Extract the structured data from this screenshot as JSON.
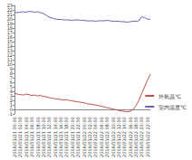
{
  "chart_data": {
    "type": "line",
    "categories": [
      "2016/01/21 00:00",
      null,
      "2016/01/21 02:00",
      null,
      "2016/01/21 04:00",
      null,
      "2016/01/21 06:00",
      null,
      "2016/01/21 08:00",
      null,
      "2016/01/21 10:00",
      null,
      "2016/01/21 12:00",
      null,
      "2016/01/21 14:00",
      null,
      "2016/01/21 16:00",
      null,
      "2016/01/21 18:00",
      null,
      "2016/01/21 20:00",
      null,
      "2016/01/21 22:00",
      null,
      "2016/01/22 00:00",
      null,
      "2016/01/22 02:00",
      null,
      "2016/01/22 04:00",
      null,
      "2016/01/22 06:00",
      null,
      "2016/01/22 08:00",
      null,
      "2016/01/22 10:00",
      null,
      "2016/01/22 12:00",
      null,
      "2016/01/22 14:00",
      null,
      "2016/01/22 16:00",
      null,
      "2016/01/22 18:00",
      null,
      "2016/01/22 20:00",
      null,
      "2016/01/22 22:00",
      null
    ],
    "series": [
      {
        "name": "外気温℃",
        "color": "#c0504d",
        "values": [
          3.6,
          3.4,
          3.3,
          3.2,
          3.4,
          3.3,
          3.1,
          3.2,
          3.0,
          3.1,
          2.9,
          2.8,
          2.6,
          2.5,
          2.4,
          2.3,
          2.2,
          2.1,
          2.2,
          2.0,
          1.9,
          1.8,
          1.7,
          1.6,
          1.5,
          1.3,
          1.2,
          1.1,
          1.0,
          0.9,
          0.7,
          0.6,
          0.4,
          0.3,
          0.1,
          0.0,
          -0.2,
          -0.3,
          -0.4,
          -0.5,
          -0.4,
          0.0,
          0.8,
          2.0,
          3.5,
          5.0,
          6.5,
          7.8
        ]
      },
      {
        "name": "室内温度℃",
        "color": "#7060a8",
        "values": [
          21.5,
          21.4,
          21.5,
          21.6,
          21.5,
          21.7,
          21.6,
          21.5,
          21.6,
          21.4,
          21.2,
          20.8,
          20.4,
          20.2,
          20.0,
          19.9,
          19.9,
          19.8,
          19.8,
          19.8,
          19.7,
          19.8,
          19.8,
          19.7,
          19.7,
          19.6,
          19.6,
          19.6,
          19.5,
          19.6,
          19.6,
          19.6,
          19.7,
          19.6,
          19.5,
          19.5,
          19.5,
          19.4,
          19.4,
          19.3,
          19.4,
          19.5,
          19.5,
          19.6,
          20.5,
          20.3,
          20.0,
          19.9
        ]
      }
    ],
    "ylim": [
      -1,
      23
    ],
    "yticks": [
      -1,
      0,
      1,
      2,
      3,
      4,
      5,
      6,
      7,
      8,
      9,
      10,
      11,
      12,
      13,
      14,
      15,
      16,
      17,
      18,
      19,
      20,
      21,
      22,
      23
    ],
    "grid": false,
    "legend": "right"
  }
}
